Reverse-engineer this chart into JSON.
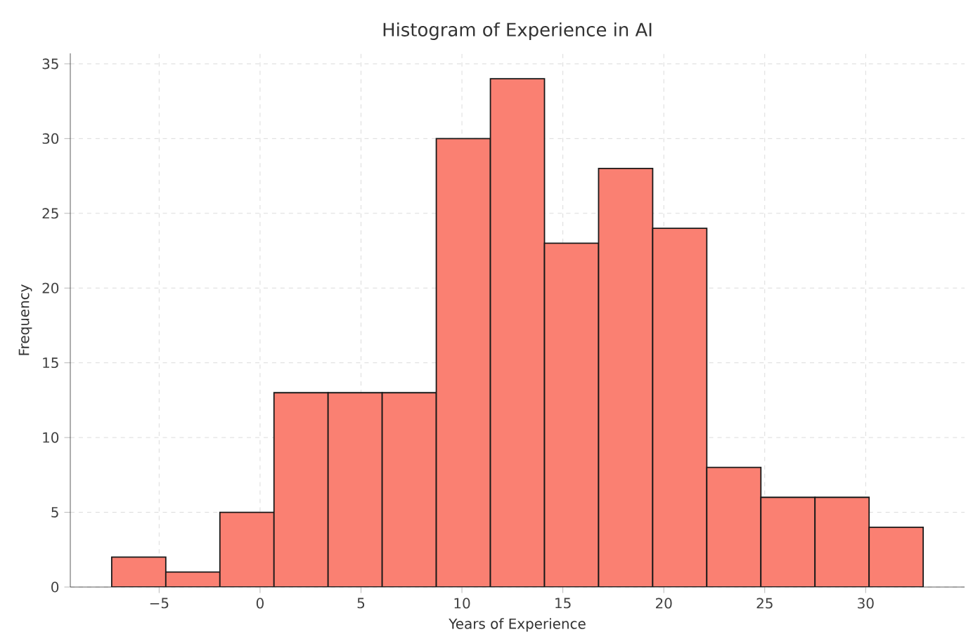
{
  "chart_data": {
    "type": "histogram",
    "title": "Histogram of Experience in AI",
    "xlabel": "Years of Experience",
    "ylabel": "Frequency",
    "bins": [
      -7.35,
      -4.67,
      -1.99,
      0.69,
      3.37,
      6.05,
      8.73,
      11.41,
      14.09,
      16.77,
      19.45,
      22.13,
      24.81,
      27.49,
      30.17,
      32.85
    ],
    "values": [
      2,
      1,
      5,
      13,
      13,
      13,
      30,
      34,
      23,
      28,
      24,
      8,
      6,
      6,
      4
    ],
    "color": "#fa8072",
    "xlim": [
      -9.4,
      34.9
    ],
    "ylim": [
      0,
      35.7
    ],
    "xticks": [
      {
        "value": -5,
        "label": "−5"
      },
      0,
      5,
      10,
      15,
      20,
      25,
      30
    ],
    "yticks": [
      0,
      5,
      10,
      15,
      20,
      25,
      30,
      35
    ],
    "grid": true
  }
}
